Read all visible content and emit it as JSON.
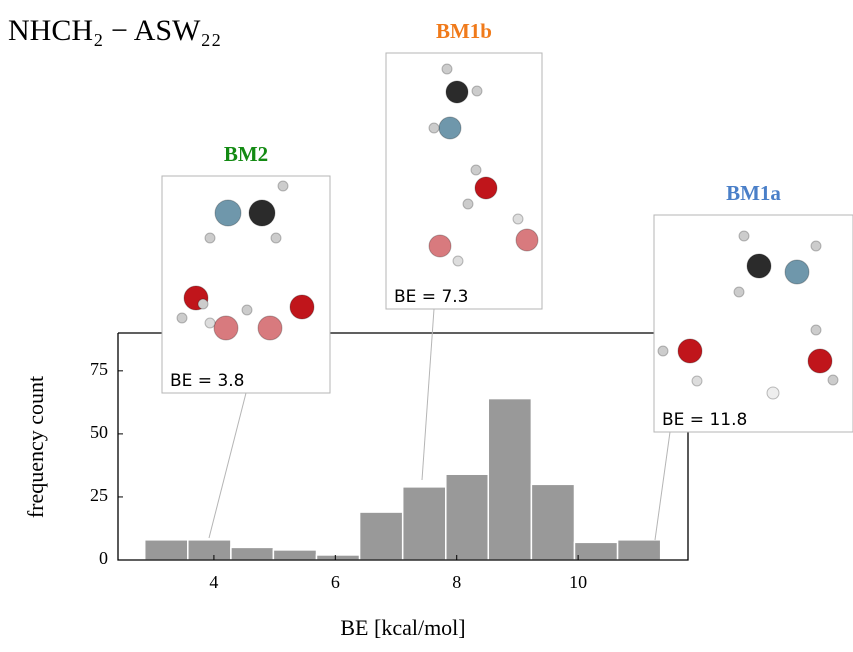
{
  "chart_data": {
    "type": "histogram",
    "title": "NHCH₂ − ASW₂₂",
    "xlabel": "BE [kcal/mol]",
    "ylabel": "frequency count",
    "bins": [
      2.86,
      3.57,
      4.28,
      4.98,
      5.69,
      6.4,
      7.11,
      7.82,
      8.52,
      9.23,
      9.94,
      10.65,
      11.36
    ],
    "values": [
      8,
      8,
      5,
      4,
      2,
      19,
      29,
      34,
      64,
      30,
      7,
      8
    ],
    "color": "#999999",
    "xlim": [
      2.42,
      11.81
    ],
    "xticks": [
      4,
      6,
      8,
      10
    ],
    "ylim": [
      0,
      90
    ],
    "yticks": [
      0,
      25,
      50,
      75
    ],
    "annotations": [
      {
        "label": "BM2",
        "color": "#138a13",
        "text": "BE = 3.8"
      },
      {
        "label": "BM1b",
        "color": "#f07a1a",
        "text": "BE = 7.3"
      },
      {
        "label": "BM1a",
        "color": "#4a7fc8",
        "text": "BE = 11.8"
      }
    ]
  }
}
